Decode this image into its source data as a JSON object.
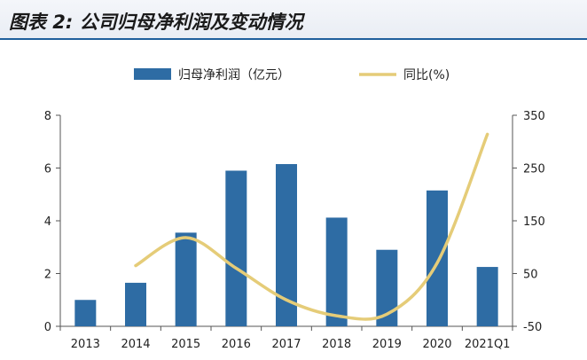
{
  "header": {
    "title": "图表 2: 公司归母净利润及变动情况"
  },
  "chart_data": {
    "type": "bar",
    "categories": [
      "2013",
      "2014",
      "2015",
      "2016",
      "2017",
      "2018",
      "2019",
      "2020",
      "2021Q1"
    ],
    "series": [
      {
        "name": "归母净利润（亿元）",
        "type": "bar",
        "axis": "left",
        "color": "#2e6ca4",
        "values": [
          1.0,
          1.65,
          3.55,
          5.9,
          6.15,
          4.12,
          2.9,
          5.15,
          2.25
        ]
      },
      {
        "name": "同比(%)",
        "type": "line",
        "axis": "right",
        "color": "#e5cc78",
        "values": [
          null,
          65,
          118,
          60,
          0,
          -30,
          -27,
          70,
          314
        ]
      }
    ],
    "y_left": {
      "ylim": [
        0,
        8
      ],
      "ticks": [
        "0",
        "2",
        "4",
        "6",
        "8"
      ]
    },
    "y_right": {
      "ylim": [
        -50,
        350
      ],
      "ticks": [
        "-50",
        "50",
        "150",
        "250",
        "350"
      ]
    },
    "grid": false,
    "legend": "top-center"
  }
}
